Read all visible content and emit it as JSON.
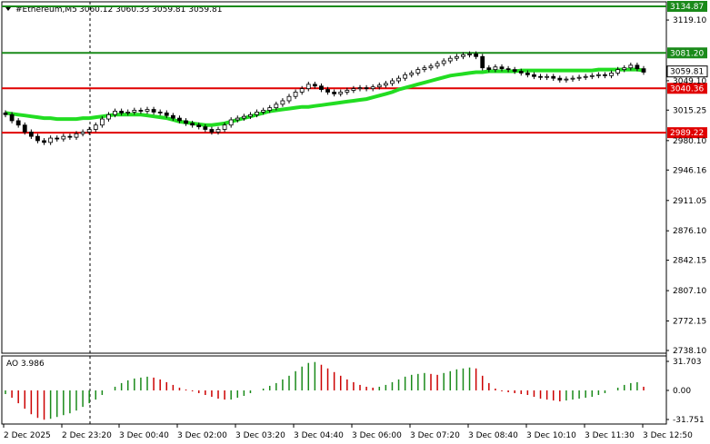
{
  "header": {
    "symbol": "#Ethereum,M5",
    "ohlc": "3060.12 3060.33 3059.81 3059.81"
  },
  "price_axis": {
    "ticks": [
      "3119.10",
      "3049.10",
      "3015.25",
      "2980.10",
      "2946.16",
      "2911.05",
      "2876.10",
      "2842.15",
      "2807.10",
      "2772.15",
      "2738.10"
    ],
    "current_price": "3059.81"
  },
  "levels": [
    {
      "label": "3134.87",
      "price": 3134.87,
      "color": "#1a8a1a"
    },
    {
      "label": "3081.20",
      "price": 3081.2,
      "color": "#1a8a1a"
    },
    {
      "label": "3040.36",
      "price": 3040.36,
      "color": "#e00000"
    },
    {
      "label": "2989.22",
      "price": 2989.22,
      "color": "#e00000"
    }
  ],
  "time_axis": [
    "2 Dec 2025",
    "2 Dec 23:20",
    "3 Dec 00:40",
    "3 Dec 02:00",
    "3 Dec 03:20",
    "3 Dec 04:40",
    "3 Dec 06:00",
    "3 Dec 07:20",
    "3 Dec 08:40",
    "3 Dec 10:10",
    "3 Dec 11:30",
    "3 Dec 12:50"
  ],
  "indicator": {
    "label": "AO 3.986",
    "ticks": [
      "31.703",
      "0.00",
      "-31.751"
    ]
  },
  "colors": {
    "ma": "#22dd22",
    "ao_up": "#1a8a1a",
    "ao_down": "#cc0000",
    "support": "#e00000",
    "resistance": "#1a8a1a"
  },
  "chart_data": {
    "type": "candlestick",
    "price_range": [
      2738.1,
      3134.87
    ],
    "close": [
      3010,
      3003,
      2998,
      2990,
      2985,
      2980,
      2978,
      2983,
      2982,
      2985,
      2984,
      2988,
      2990,
      2993,
      2998,
      3005,
      3010,
      3014,
      3012,
      3013,
      3015,
      3014,
      3016,
      3013,
      3012,
      3009,
      3006,
      3003,
      3000,
      2998,
      2996,
      2993,
      2990,
      2993,
      2998,
      3004,
      3006,
      3008,
      3010,
      3013,
      3015,
      3018,
      3022,
      3026,
      3031,
      3036,
      3040,
      3045,
      3043,
      3039,
      3036,
      3034,
      3036,
      3038,
      3040,
      3041,
      3040,
      3042,
      3044,
      3046,
      3049,
      3052,
      3056,
      3058,
      3062,
      3064,
      3066,
      3069,
      3072,
      3075,
      3077,
      3079,
      3080,
      3077,
      3064,
      3062,
      3065,
      3063,
      3062,
      3060,
      3058,
      3056,
      3054,
      3053,
      3054,
      3052,
      3050,
      3051,
      3052,
      3053,
      3054,
      3055,
      3056,
      3055,
      3058,
      3062,
      3064,
      3067,
      3063,
      3059
    ],
    "ma": [
      3012,
      3011,
      3010,
      3009,
      3008,
      3007,
      3006,
      3006,
      3005,
      3005,
      3005,
      3005,
      3006,
      3006,
      3007,
      3008,
      3009,
      3010,
      3010,
      3010,
      3010,
      3010,
      3009,
      3008,
      3007,
      3006,
      3004,
      3002,
      3001,
      3000,
      2999,
      2998,
      2998,
      2999,
      3000,
      3002,
      3004,
      3006,
      3008,
      3010,
      3012,
      3014,
      3015,
      3016,
      3017,
      3018,
      3019,
      3019,
      3020,
      3021,
      3022,
      3023,
      3024,
      3025,
      3026,
      3027,
      3028,
      3030,
      3032,
      3034,
      3036,
      3039,
      3041,
      3043,
      3045,
      3047,
      3049,
      3051,
      3053,
      3055,
      3056,
      3057,
      3058,
      3059,
      3059,
      3060,
      3060,
      3060,
      3060,
      3060,
      3061,
      3061,
      3061,
      3061,
      3061,
      3061,
      3061,
      3061,
      3061,
      3061,
      3061,
      3061,
      3062,
      3062,
      3062,
      3062,
      3062,
      3062,
      3062,
      3061
    ],
    "ao": [
      -4,
      -8,
      -14,
      -20,
      -26,
      -30,
      -32,
      -31,
      -29,
      -27,
      -25,
      -22,
      -18,
      -14,
      -10,
      -5,
      0,
      4,
      8,
      11,
      13,
      14,
      15,
      14,
      12,
      9,
      6,
      3,
      1,
      -1,
      -3,
      -5,
      -7,
      -9,
      -10,
      -10,
      -8,
      -6,
      -3,
      0,
      2,
      5,
      8,
      12,
      16,
      21,
      26,
      30,
      31,
      28,
      24,
      20,
      16,
      12,
      9,
      6,
      4,
      3,
      4,
      6,
      9,
      12,
      15,
      17,
      18,
      19,
      18,
      17,
      19,
      21,
      23,
      24,
      25,
      24,
      16,
      8,
      2,
      -1,
      -2,
      -3,
      -4,
      -5,
      -7,
      -9,
      -10,
      -11,
      -12,
      -11,
      -10,
      -9,
      -8,
      -7,
      -5,
      -3,
      0,
      3,
      6,
      8,
      9,
      4
    ]
  }
}
